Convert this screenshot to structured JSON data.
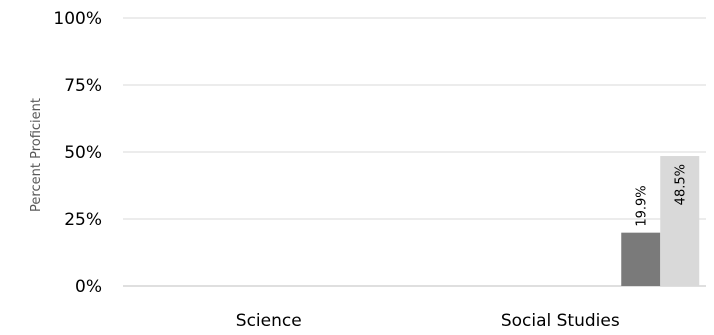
{
  "chart_data": {
    "type": "bar",
    "title": "",
    "xlabel": "",
    "ylabel": "Percent Proficient",
    "ylim": [
      0,
      100
    ],
    "yticks": [
      "0%",
      "25%",
      "50%",
      "75%",
      "100%"
    ],
    "categories": [
      "Science",
      "Social Studies"
    ],
    "series": [
      {
        "values": [
          null,
          19.9
        ],
        "labels": [
          "",
          "19.9%"
        ],
        "color": "#7a7a7a"
      },
      {
        "values": [
          null,
          48.5
        ],
        "labels": [
          "",
          "48.5%"
        ],
        "color": "#d9d9d9"
      }
    ],
    "grid": true,
    "gridColor": "#d9d9d9",
    "axisColor": "#bfbfbf",
    "legend": "none"
  }
}
